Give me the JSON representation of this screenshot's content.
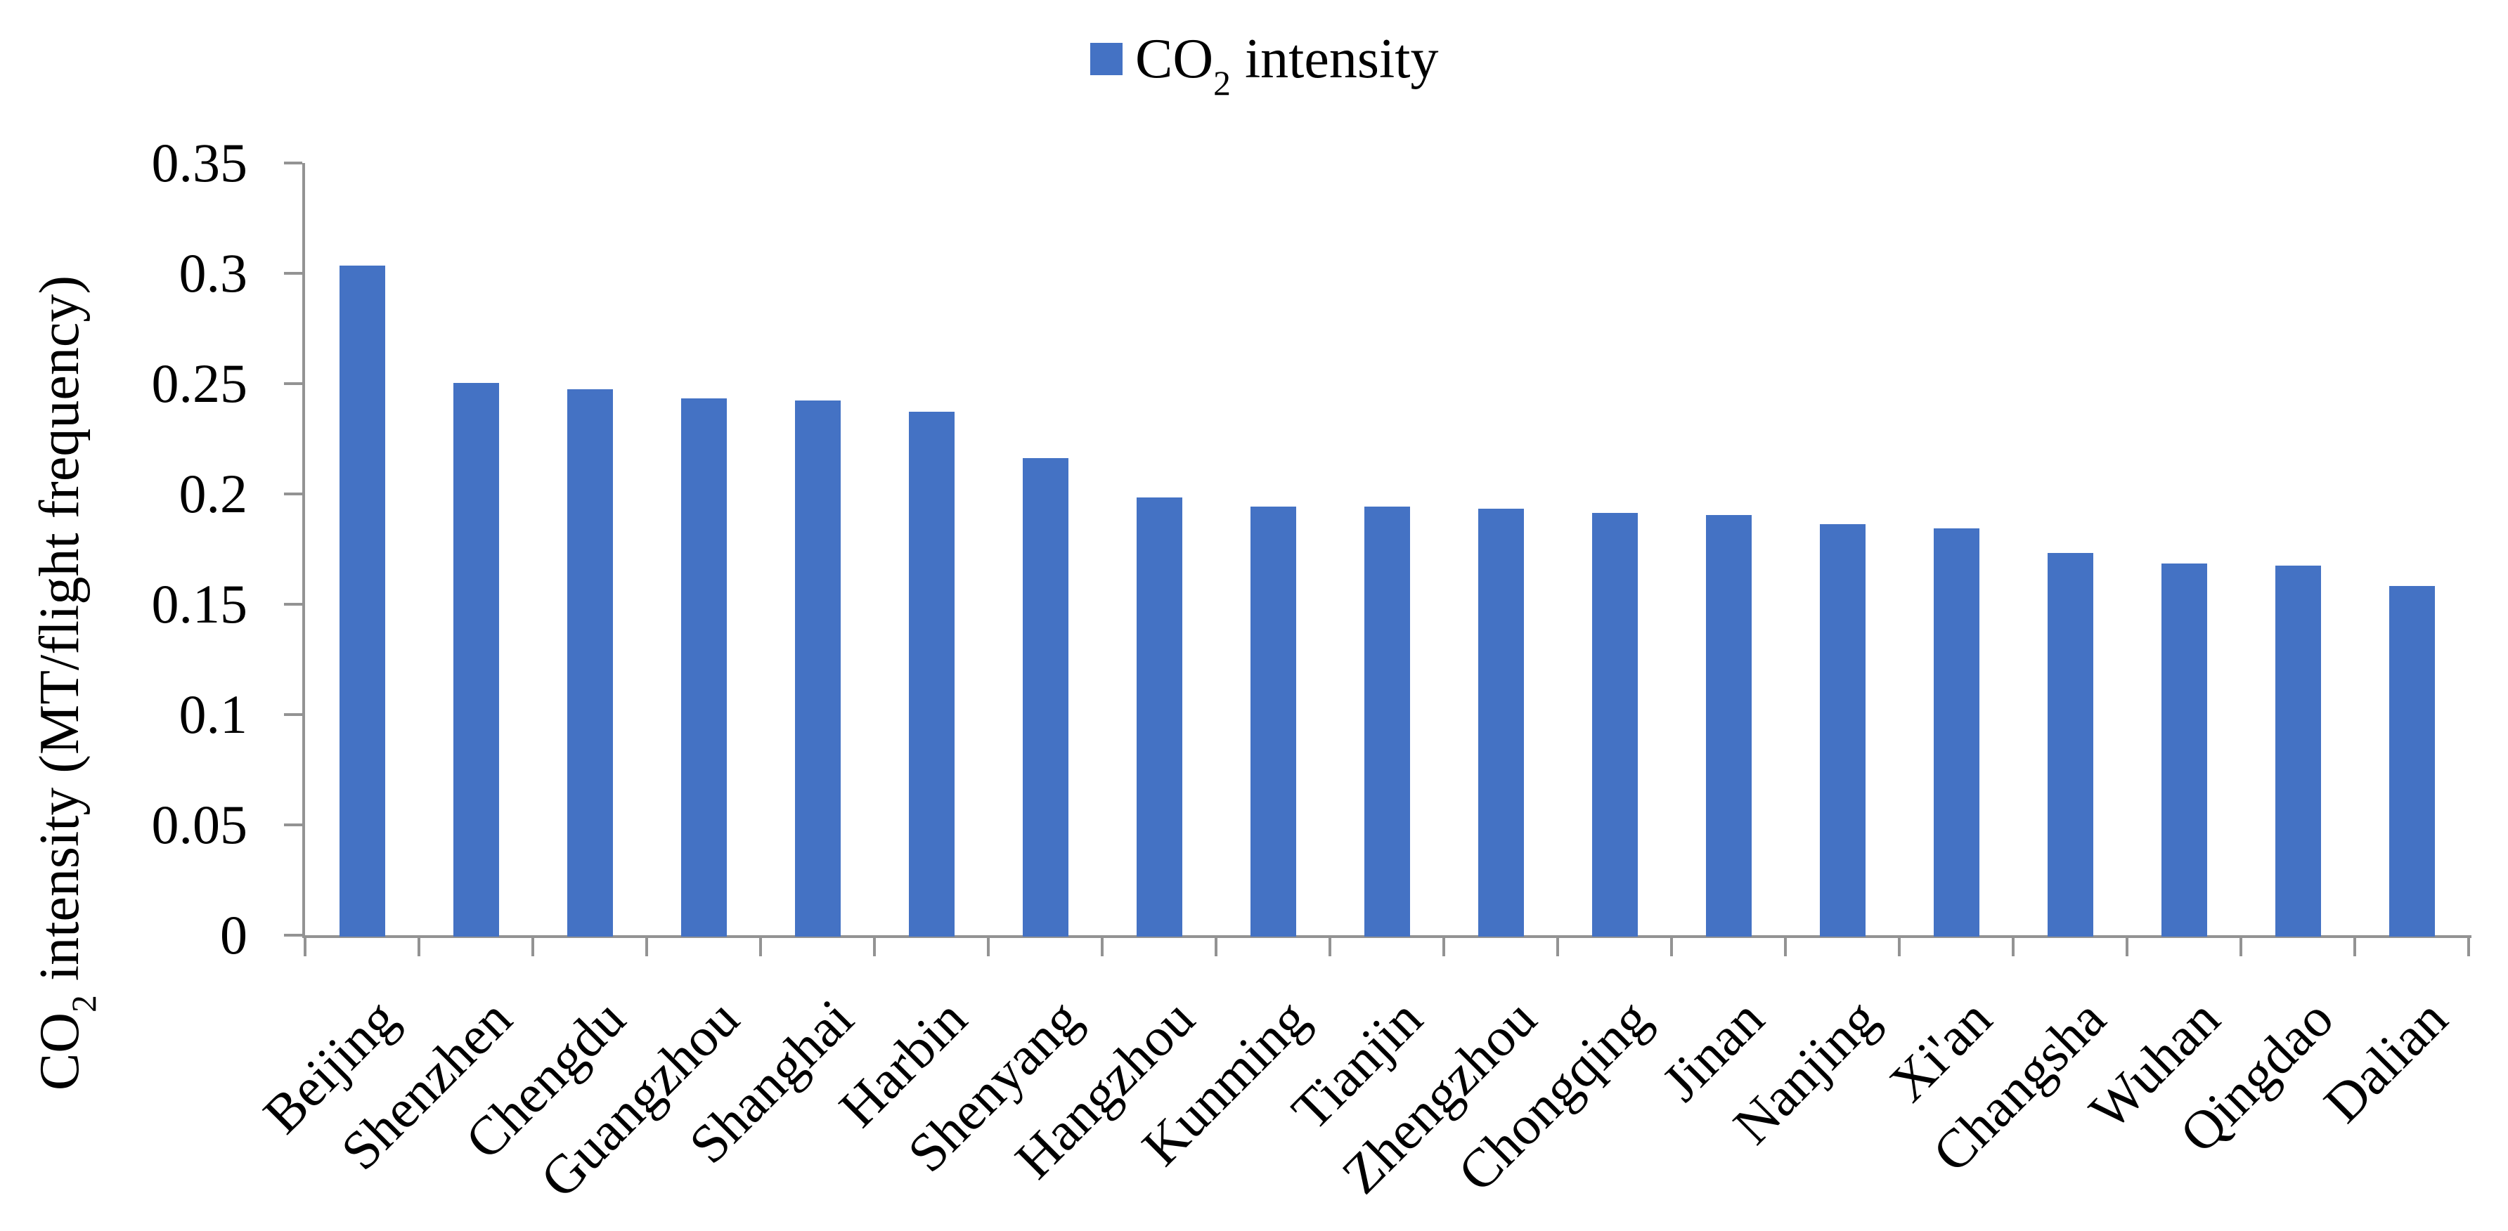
{
  "legend": {
    "label_main": "CO",
    "label_sub": "2",
    "label_rest": " intensity"
  },
  "axes": {
    "y_title_main": "CO",
    "y_title_sub": "2",
    "y_title_rest": " intensity (MT/flight frequency)",
    "y_tick_labels": [
      "0.35",
      "0.3",
      "0.25",
      "0.2",
      "0.15",
      "0.1",
      "0.05",
      "0"
    ]
  },
  "colors": {
    "bar": "#4472C4",
    "axis": "#939393",
    "text": "#000000"
  },
  "chart_data": {
    "type": "bar",
    "title": "",
    "legend_label": "CO2 intensity",
    "legend_position": "top-center",
    "xlabel": "",
    "ylabel": "CO2 intensity (MT/flight frequency)",
    "ylim": [
      0,
      0.35
    ],
    "ytick_step": 0.05,
    "grid": false,
    "x_label_rotation_deg": 45,
    "categories": [
      "Beijing",
      "Shenzhen",
      "Chengdu",
      "Guangzhou",
      "Shanghai",
      "Harbin",
      "Shenyang",
      "Hangzhou",
      "Kunming",
      "Tianjin",
      "Zhengzhou",
      "Chongqing",
      "Jinan",
      "Nanjing",
      "Xi'an",
      "Changsha",
      "Wuhan",
      "Qingdao",
      "Dalian"
    ],
    "values": [
      0.304,
      0.251,
      0.248,
      0.244,
      0.243,
      0.238,
      0.217,
      0.199,
      0.195,
      0.195,
      0.194,
      0.192,
      0.191,
      0.187,
      0.185,
      0.174,
      0.169,
      0.168,
      0.159
    ]
  }
}
